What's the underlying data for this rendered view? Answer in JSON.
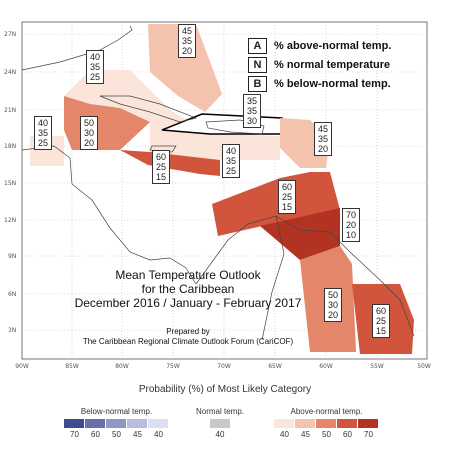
{
  "map": {
    "title_line1": "Mean Temperature Outlook",
    "title_line2": "for the Caribbean",
    "title_line3": "December 2016 / January - February 2017",
    "prepared_by": "Prepared by",
    "forum": "The Caribbean Regional Climate Outlook Forum (CariCOF)",
    "lat_ticks": [
      "27N",
      "24N",
      "21N",
      "18N",
      "15N",
      "12N",
      "9N",
      "6N",
      "3N"
    ],
    "lon_ticks": [
      "90W",
      "85W",
      "80W",
      "75W",
      "70W",
      "65W",
      "60W",
      "55W",
      "50W"
    ]
  },
  "key": {
    "a": {
      "letter": "A",
      "text": "% above-normal temp."
    },
    "n": {
      "letter": "N",
      "text": "% normal temperature"
    },
    "b": {
      "letter": "B",
      "text": "% below-normal temp."
    }
  },
  "regions": [
    {
      "id": "bahamas",
      "a": "45",
      "n": "35",
      "b": "20",
      "color": "#f4c3ae"
    },
    {
      "id": "cuba-west",
      "a": "40",
      "n": "35",
      "b": "25",
      "color": "#fbe4da"
    },
    {
      "id": "hispaniola",
      "a": "35",
      "n": "35",
      "b": "30",
      "color": "#ffffff"
    },
    {
      "id": "far-west",
      "a": "40",
      "n": "35",
      "b": "25",
      "color": "#fbe4da"
    },
    {
      "id": "jamaica",
      "a": "50",
      "n": "30",
      "b": "20",
      "color": "#e3866a"
    },
    {
      "id": "west-caribbean",
      "a": "60",
      "n": "25",
      "b": "15",
      "color": "#d1553d"
    },
    {
      "id": "central-caribbean",
      "a": "40",
      "n": "35",
      "b": "25",
      "color": "#fbe4da"
    },
    {
      "id": "leeward",
      "a": "45",
      "n": "35",
      "b": "20",
      "color": "#f4c3ae"
    },
    {
      "id": "east-caribbean",
      "a": "60",
      "n": "25",
      "b": "15",
      "color": "#d1553d"
    },
    {
      "id": "windward",
      "a": "70",
      "n": "20",
      "b": "10",
      "color": "#b23322"
    },
    {
      "id": "guyana",
      "a": "50",
      "n": "30",
      "b": "20",
      "color": "#e3866a"
    },
    {
      "id": "suriname",
      "a": "60",
      "n": "25",
      "b": "15",
      "color": "#d1553d"
    }
  ],
  "legend": {
    "category_label": "Probability (%) of Most Likely Category",
    "below": {
      "label": "Below-normal temp.",
      "values": [
        "70",
        "60",
        "50",
        "45",
        "40"
      ],
      "colors": [
        "#3f4b8f",
        "#6870ac",
        "#8f97c7",
        "#b8bddf",
        "#dcdff0"
      ]
    },
    "normal": {
      "label": "Normal temp.",
      "values": [
        "40"
      ],
      "colors": [
        "#c8c8c8"
      ]
    },
    "above": {
      "label": "Above-normal temp.",
      "values": [
        "40",
        "45",
        "50",
        "60",
        "70"
      ],
      "colors": [
        "#fbe4da",
        "#f4c3ae",
        "#e3866a",
        "#d1553d",
        "#b23322"
      ]
    }
  }
}
